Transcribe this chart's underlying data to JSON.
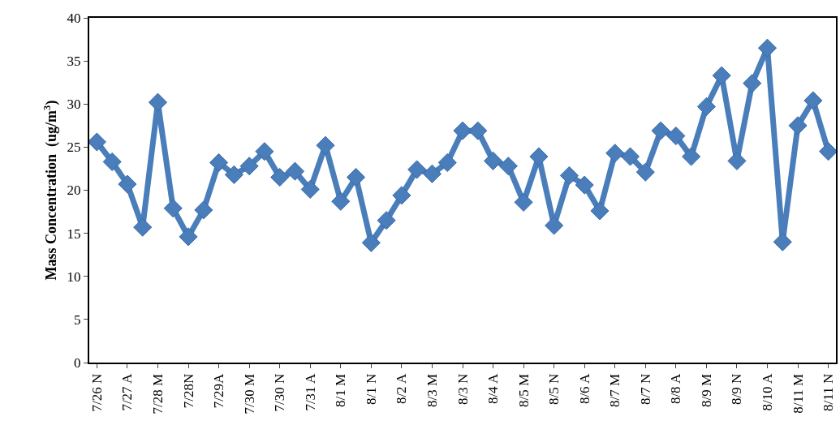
{
  "chart_data": {
    "type": "line",
    "ylabel": "Mass Concentration  (ug/m$^{3}$)",
    "categories": [
      "7/26 N",
      null,
      "7/27 A",
      null,
      "7/28 M",
      null,
      "7/28N",
      null,
      "7/29A",
      null,
      "7/30 M",
      null,
      "7/30 N",
      null,
      "7/31 A",
      null,
      "8/1 M",
      null,
      "8/1 N",
      null,
      "8/2 A",
      null,
      "8/3 M",
      null,
      "8/3 N",
      null,
      "8/4 A",
      null,
      "8/5 M",
      null,
      "8/5 N",
      null,
      "8/6 A",
      null,
      "8/7 M",
      null,
      "8/7 N",
      null,
      "8/8 A",
      null,
      "8/9 M",
      null,
      "8/9 N",
      null,
      "8/10 A",
      null,
      "8/11 M",
      null,
      "8/11 N"
    ],
    "series": [
      {
        "color": "#4a7ebb",
        "values": [
          25.6,
          23.3,
          20.7,
          15.7,
          30.2,
          17.9,
          14.6,
          17.7,
          23.2,
          21.8,
          22.8,
          24.5,
          21.5,
          22.2,
          20.1,
          25.2,
          18.7,
          21.5,
          13.9,
          16.5,
          19.4,
          22.4,
          21.9,
          23.2,
          26.9,
          26.9,
          23.4,
          22.8,
          18.6,
          23.9,
          15.9,
          21.7,
          20.6,
          17.6,
          24.3,
          23.9,
          22.1,
          26.9,
          26.3,
          23.9,
          29.7,
          33.3,
          23.4,
          32.4,
          36.5,
          14.0,
          27.5,
          30.4,
          24.5
        ]
      }
    ],
    "ylim": [
      0,
      40
    ],
    "yticks": [
      0,
      5,
      10,
      15,
      20,
      25,
      30,
      35,
      40
    ],
    "legend": false,
    "marker": "diamond",
    "line_style": "solid"
  }
}
